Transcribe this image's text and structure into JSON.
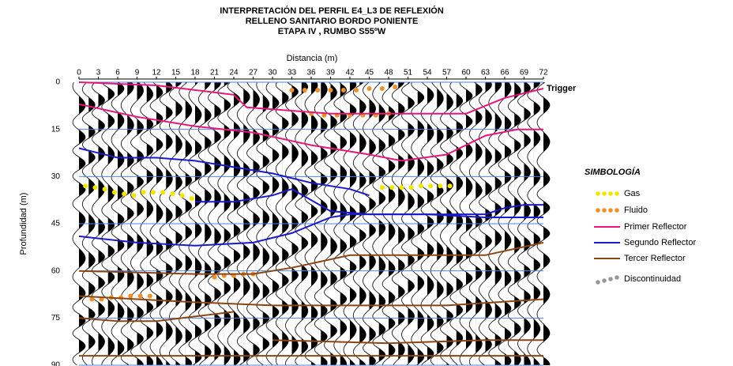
{
  "chart_data": {
    "type": "seismic",
    "title_lines": [
      "INTERPRETACIÓN DEL PERFIL E4_L3 DE REFLEXIÓN",
      "RELLENO SANITARIO BORDO PONIENTE",
      "ETAPA IV , RUMBO S55ºW"
    ],
    "x_label": "Distancia (m)",
    "y_label": "Profundidad (m)",
    "trigger_label": "Trigger",
    "xlim": [
      0,
      72
    ],
    "ylim": [
      0,
      90
    ],
    "y_inverted": true,
    "xticks": [
      0,
      3,
      6,
      9,
      12,
      15,
      18,
      21,
      24,
      27,
      30,
      33,
      36,
      39,
      42,
      45,
      48,
      51,
      54,
      57,
      60,
      63,
      66,
      69,
      72
    ],
    "yticks": [
      0,
      15,
      30,
      45,
      60,
      75,
      90
    ],
    "grid": true,
    "grid_color": "#4a86e8",
    "legend_title": "SIMBOLOGÍA",
    "series": [
      {
        "name": "Gas",
        "kind": "points",
        "color": "#f2e600",
        "pieces": [
          {
            "x": [
              1,
              2.5,
              4,
              5.5,
              7,
              8.5,
              10,
              11.5,
              13,
              14.5,
              16,
              17.5
            ],
            "values": [
              33,
              33.5,
              34,
              35,
              35.5,
              36,
              35,
              35,
              35,
              35.5,
              36,
              37
            ]
          },
          {
            "x": [
              47,
              48.5,
              50,
              51.5,
              53,
              54.5,
              56,
              57.5
            ],
            "values": [
              33.5,
              33.5,
              33.5,
              33.5,
              33,
              33,
              33,
              33
            ]
          }
        ]
      },
      {
        "name": "Fluido",
        "kind": "points",
        "color": "#f0902a",
        "pieces": [
          {
            "x": [
              33,
              35,
              37,
              39,
              41,
              43,
              45,
              47,
              49
            ],
            "values": [
              2.5,
              2.5,
              2.5,
              2.5,
              2.5,
              2.5,
              2,
              2,
              1.5
            ]
          },
          {
            "x": [
              2,
              3.5,
              5,
              6.5,
              8,
              9.5,
              11
            ],
            "values": [
              69,
              69,
              68.5,
              68.5,
              68,
              68,
              68
            ]
          },
          {
            "x": [
              21,
              22.5,
              24,
              25.5,
              27
            ],
            "values": [
              62,
              61.5,
              61.5,
              61,
              61
            ]
          },
          {
            "x": [
              36,
              38,
              40,
              42,
              44,
              46,
              48
            ],
            "values": [
              10,
              10.5,
              10.5,
              10.5,
              10.5,
              10.5,
              10
            ]
          }
        ]
      },
      {
        "name": "Primer Reflector",
        "kind": "line",
        "color": "#e8157a",
        "pieces": [
          {
            "x": [
              0,
              9,
              18,
              27,
              36,
              45,
              50,
              57,
              63,
              68,
              72
            ],
            "values": [
              7,
              11,
              14,
              16,
              20,
              23,
              25,
              23,
              17,
              15,
              15
            ]
          },
          {
            "x": [
              0,
              12,
              24,
              26,
              39,
              45,
              51,
              60
            ],
            "values": [
              0,
              1,
              4,
              8,
              10,
              10,
              10,
              10
            ]
          },
          {
            "x": [
              60,
              66,
              72
            ],
            "values": [
              10,
              5,
              2
            ]
          }
        ]
      },
      {
        "name": "Segundo Reflector",
        "kind": "line",
        "color": "#1a1acc",
        "pieces": [
          {
            "x": [
              0,
              6,
              12,
              18,
              24,
              30,
              36,
              42,
              45
            ],
            "values": [
              21,
              24,
              24,
              25,
              27,
              29,
              32,
              34,
              36
            ]
          },
          {
            "x": [
              18,
              24,
              30,
              33,
              39,
              45,
              54,
              63,
              66,
              69,
              72
            ],
            "values": [
              38,
              38,
              36,
              34,
              41,
              42,
              42,
              42,
              40,
              39,
              39
            ]
          },
          {
            "x": [
              0,
              9,
              18,
              27,
              33,
              39,
              42,
              54,
              63,
              72
            ],
            "values": [
              49,
              51,
              52,
              51,
              48,
              43,
              42,
              42,
              43,
              43
            ]
          }
        ]
      },
      {
        "name": "Tercer Reflector",
        "kind": "line",
        "color": "#8b4513",
        "pieces": [
          {
            "x": [
              0,
              18,
              27,
              33,
              42,
              54,
              63,
              72
            ],
            "values": [
              60,
              61,
              61,
              59,
              55,
              55,
              55,
              51
            ]
          },
          {
            "x": [
              0,
              18,
              30,
              45,
              57,
              72
            ],
            "values": [
              68,
              70,
              71,
              71,
              71,
              69
            ]
          },
          {
            "x": [
              0,
              6,
              12,
              24
            ],
            "values": [
              75,
              76,
              76,
              73
            ]
          },
          {
            "x": [
              30,
              48,
              63,
              72
            ],
            "values": [
              82,
              83,
              82,
              82
            ]
          },
          {
            "x": [
              0,
              18,
              36,
              54,
              72
            ],
            "values": [
              87,
              87,
              87,
              87,
              87
            ]
          }
        ]
      },
      {
        "name": "Discontinuidad",
        "kind": "points",
        "color": "#999999",
        "pieces": []
      }
    ]
  }
}
